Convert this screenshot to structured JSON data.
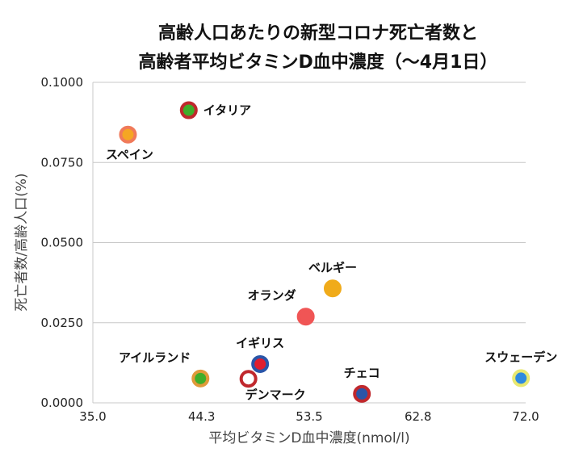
{
  "chart_data": {
    "type": "scatter",
    "title": [
      "高齢人口あたりの新型コロナ死亡者数と",
      "高齢者平均ビタミンD血中濃度（〜4月1日）"
    ],
    "xlabel": "平均ビタミンD血中濃度(nmol/l)",
    "ylabel": "死亡者数/高齢人口(%)",
    "xlim": [
      35.0,
      72.0
    ],
    "ylim": [
      0.0,
      0.1
    ],
    "xticks": [
      35.0,
      44.3,
      53.5,
      62.8,
      72.0
    ],
    "xtick_labels": [
      "35.0",
      "44.3",
      "53.5",
      "62.8",
      "72.0"
    ],
    "yticks": [
      0.0,
      0.025,
      0.05,
      0.075,
      0.1
    ],
    "ytick_labels": [
      "0.0000",
      "0.0250",
      "0.0500",
      "0.0750",
      "0.1000"
    ],
    "grid": true,
    "points": [
      {
        "label": "イタリア",
        "x": 43.2,
        "y": 0.0913,
        "fill": "#3fae2a",
        "ring": "#c0282d",
        "label_pos": "right"
      },
      {
        "label": "スペイン",
        "x": 38.0,
        "y": 0.0837,
        "fill": "#f5a623",
        "ring": "#f07a5a",
        "label_pos": "below"
      },
      {
        "label": "ベルギー",
        "x": 55.5,
        "y": 0.0357,
        "fill": "#f0ab1a",
        "ring": "#f0ab1a",
        "label_pos": "above"
      },
      {
        "label": "オランダ",
        "x": 53.2,
        "y": 0.0269,
        "fill": "#f05555",
        "ring": "#f05555",
        "label_pos": "above-left"
      },
      {
        "label": "アイルランド",
        "x": 44.2,
        "y": 0.0076,
        "fill": "#3fae2a",
        "ring": "#e09a3a",
        "label_pos": "above-left"
      },
      {
        "label": "イギリス",
        "x": 49.3,
        "y": 0.0121,
        "fill": "#e01e2e",
        "ring": "#2a55a8",
        "label_pos": "above"
      },
      {
        "label": "デンマーク",
        "x": 48.3,
        "y": 0.0075,
        "fill": "#ffffff",
        "ring": "#c0282d",
        "label_pos": "below-right"
      },
      {
        "label": "チェコ",
        "x": 58.0,
        "y": 0.0028,
        "fill": "#2a55a8",
        "ring": "#c0282d",
        "label_pos": "above"
      },
      {
        "label": "スウェーデン",
        "x": 71.6,
        "y": 0.0077,
        "fill": "#2e8ae0",
        "ring": "#e8e870",
        "label_pos": "above"
      }
    ]
  }
}
